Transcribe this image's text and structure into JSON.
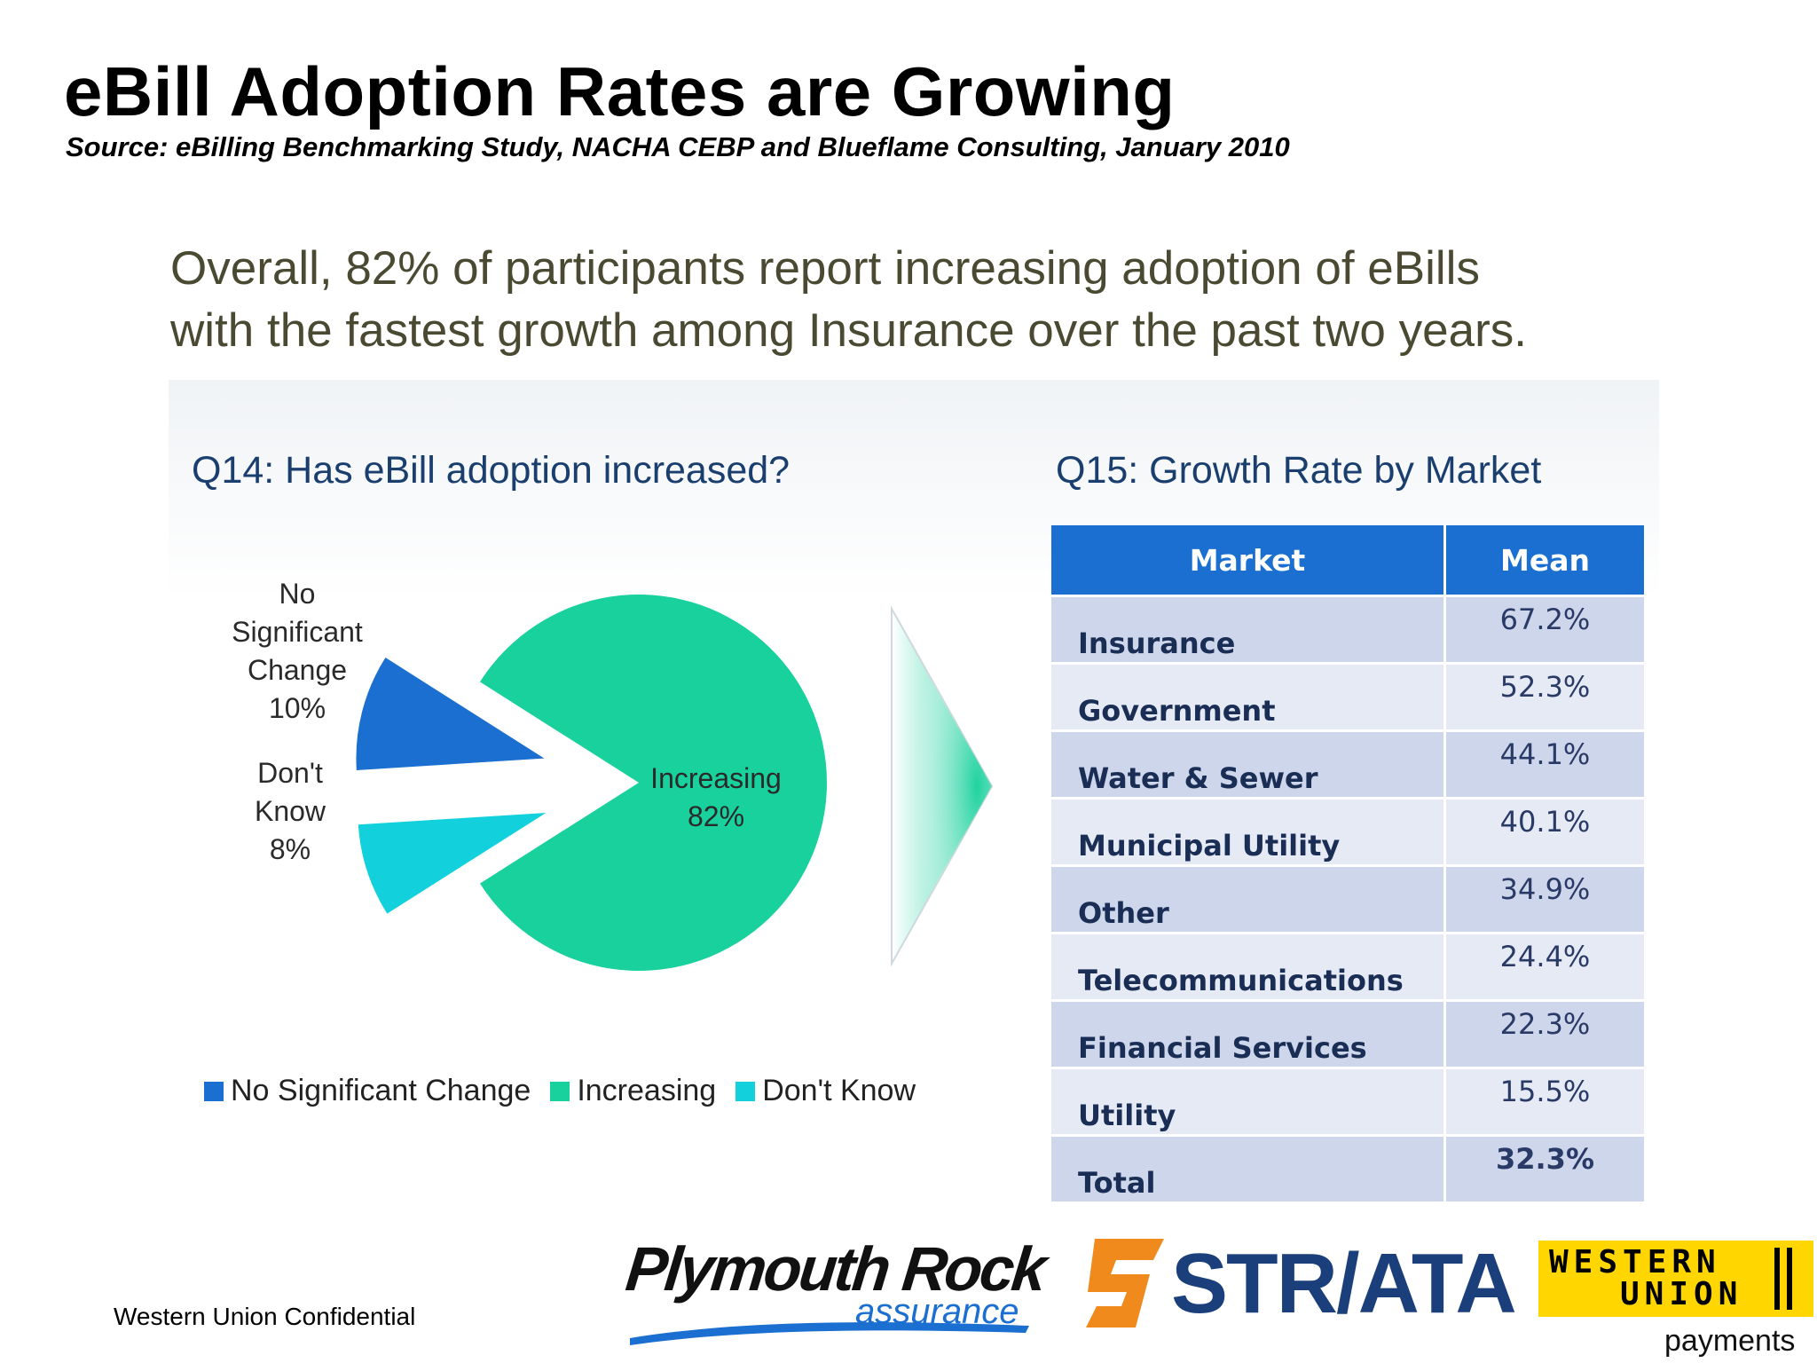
{
  "slide": {
    "title": "eBill Adoption Rates are Growing",
    "source": "Source: eBilling Benchmarking Study, NACHA CEBP and Blueflame Consulting, January 2010",
    "summary_line1": "Overall, 82% of participants report increasing adoption of eBills",
    "summary_line2": "with the fastest growth among Insurance over the past two years.",
    "confidential": "Western Union Confidential"
  },
  "logos": {
    "plymouth_main": "Plymouth Rock",
    "plymouth_sub": "assurance",
    "striata": "STR/ATA",
    "wu_line1": "WESTERN",
    "wu_line2": "UNION",
    "wu_payments": "payments"
  },
  "colors": {
    "no_change": "#1a6fd0",
    "increasing": "#18d19c",
    "dont_know": "#12d1dc",
    "table_header": "#1a6fd0"
  },
  "chart_data": [
    {
      "type": "pie",
      "title": "Q14: Has eBill adoption increased?",
      "slices": [
        {
          "name": "Increasing",
          "value": 82,
          "label": "82%",
          "color": "#18d19c"
        },
        {
          "name": "Don't Know",
          "value": 8,
          "label": "8%",
          "color": "#12d1dc"
        },
        {
          "name": "No Significant Change",
          "value": 10,
          "label": "10%",
          "color": "#1a6fd0"
        }
      ],
      "slice_labels": {
        "no_change": [
          "No",
          "Significant",
          "Change",
          "10%"
        ],
        "dont_know": [
          "Don't",
          "Know",
          "8%"
        ],
        "increasing": [
          "Increasing",
          "82%"
        ]
      },
      "legend": [
        "No Significant Change",
        "Increasing",
        "Don't Know"
      ],
      "legend_position": "bottom"
    },
    {
      "type": "table",
      "title": "Q15: Growth Rate by Market",
      "columns": [
        "Market",
        "Mean"
      ],
      "rows": [
        {
          "market": "Insurance",
          "mean": "67.2%"
        },
        {
          "market": "Government",
          "mean": "52.3%"
        },
        {
          "market": "Water & Sewer",
          "mean": "44.1%"
        },
        {
          "market": "Municipal Utility",
          "mean": "40.1%"
        },
        {
          "market": "Other",
          "mean": "34.9%"
        },
        {
          "market": "Telecommunications",
          "mean": "24.4%"
        },
        {
          "market": "Financial Services",
          "mean": "22.3%"
        },
        {
          "market": "Utility",
          "mean": "15.5%"
        },
        {
          "market": "Total",
          "mean": "32.3%"
        }
      ]
    }
  ]
}
